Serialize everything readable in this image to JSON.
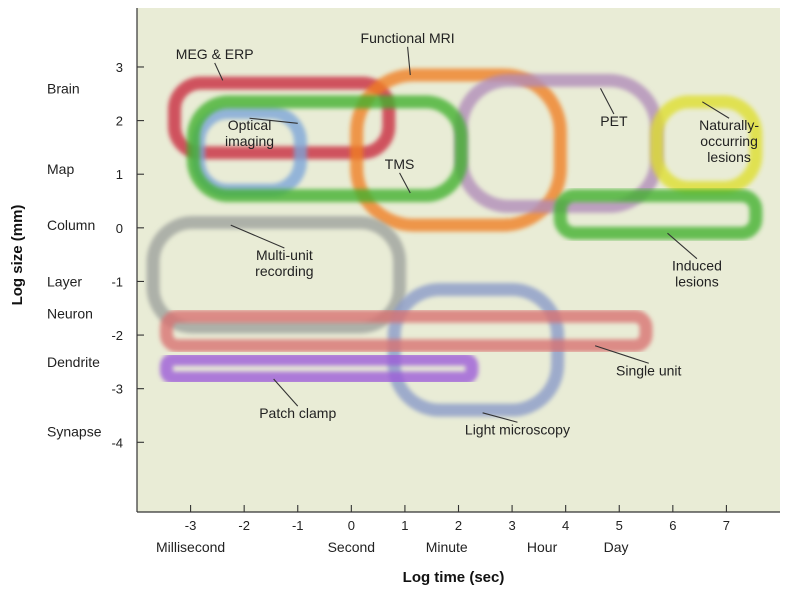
{
  "chart_data": {
    "type": "area",
    "title": "",
    "xlabel": "Log time (sec)",
    "ylabel": "Log size (mm)",
    "xlim": [
      -4,
      8
    ],
    "ylim": [
      -5.3,
      4.1
    ],
    "grid": false,
    "legend": "none",
    "plot_background": "#e9ecd6",
    "x_ticks": [
      -3,
      -2,
      -1,
      0,
      1,
      2,
      3,
      4,
      5,
      6,
      7
    ],
    "y_ticks": [
      3,
      2,
      1,
      0,
      -1,
      -2,
      -3,
      -4
    ],
    "x_unit_labels": [
      {
        "label": "Millisecond",
        "at": -3
      },
      {
        "label": "Second",
        "at": 0
      },
      {
        "label": "Minute",
        "at": 1.78
      },
      {
        "label": "Hour",
        "at": 3.56
      },
      {
        "label": "Day",
        "at": 4.94
      }
    ],
    "y_unit_labels": [
      {
        "label": "Brain",
        "at": 2.6
      },
      {
        "label": "Map",
        "at": 1.1
      },
      {
        "label": "Column",
        "at": 0.05
      },
      {
        "label": "Layer",
        "at": -1
      },
      {
        "label": "Neuron",
        "at": -1.6
      },
      {
        "label": "Dendrite",
        "at": -2.5
      },
      {
        "label": "Synapse",
        "at": -3.8
      }
    ],
    "series": [
      {
        "name": "MEG & ERP",
        "color": "#c8283c",
        "x": [
          -3.3,
          0.7
        ],
        "y": [
          1.4,
          2.7
        ],
        "label_at": [
          -2.55,
          3.15
        ],
        "leader_to": [
          -2.4,
          2.75
        ]
      },
      {
        "name": "Functional MRI",
        "color": "#f07d22",
        "x": [
          0.1,
          3.9
        ],
        "y": [
          0.05,
          2.85
        ],
        "label_at": [
          1.05,
          3.45
        ],
        "leader_to": [
          1.1,
          2.85
        ]
      },
      {
        "name": "PET",
        "color": "#b08bb8",
        "x": [
          2.05,
          5.7
        ],
        "y": [
          0.4,
          2.75
        ],
        "label_at": [
          4.9,
          1.9
        ],
        "leader_to": [
          4.65,
          2.6
        ]
      },
      {
        "name": "Naturally-occurring lesions",
        "color": "#dede2e",
        "x": [
          5.7,
          7.55
        ],
        "y": [
          0.75,
          2.35
        ],
        "label_lines": [
          "Naturally-",
          "occurring",
          "lesions"
        ],
        "label_at": [
          7.05,
          1.82
        ],
        "leader_to": [
          6.55,
          2.35
        ]
      },
      {
        "name": "Optical imaging",
        "color": "#7aa4d8",
        "x": [
          -2.85,
          -0.95
        ],
        "y": [
          0.7,
          2.15
        ],
        "label_lines": [
          "Optical",
          "imaging"
        ],
        "label_at": [
          -1.9,
          1.82
        ],
        "leader_to": [
          -1,
          1.95
        ]
      },
      {
        "name": "TMS",
        "color": "#3fb02c",
        "x": [
          -2.95,
          2.05
        ],
        "y": [
          0.6,
          2.35
        ],
        "label_at": [
          0.9,
          1.1
        ],
        "leader_to": [
          1.1,
          0.65
        ]
      },
      {
        "name": "Induced lesions",
        "color": "#3fb02c",
        "x": [
          3.9,
          7.55
        ],
        "y": [
          -0.1,
          0.6
        ],
        "label_lines": [
          "Induced",
          "lesions"
        ],
        "label_at": [
          6.45,
          -0.8
        ],
        "leader_to": [
          5.9,
          -0.1
        ]
      },
      {
        "name": "Multi-unit recording",
        "color": "#9ca09c",
        "x": [
          -3.7,
          0.9
        ],
        "y": [
          -1.85,
          0.1
        ],
        "label_lines": [
          "Multi-unit",
          "recording"
        ],
        "label_at": [
          -1.25,
          -0.6
        ],
        "leader_to": [
          -2.25,
          0.05
        ]
      },
      {
        "name": "Light microscopy",
        "color": "#8898c8",
        "x": [
          0.8,
          3.85
        ],
        "y": [
          -3.4,
          -1.15
        ],
        "label_at": [
          3.1,
          -3.85
        ],
        "leader_to": [
          2.45,
          -3.45
        ]
      },
      {
        "name": "Single unit",
        "color": "#d87070",
        "x": [
          -3.45,
          5.5
        ],
        "y": [
          -2.2,
          -1.65
        ],
        "label_at": [
          5.55,
          -2.75
        ],
        "leader_to": [
          4.55,
          -2.2
        ]
      },
      {
        "name": "Patch clamp",
        "color": "#9b58d8",
        "x": [
          -3.45,
          2.25
        ],
        "y": [
          -2.8,
          -2.45
        ],
        "label_at": [
          -1.0,
          -3.55
        ],
        "leader_to": [
          -1.45,
          -2.82
        ]
      }
    ]
  }
}
